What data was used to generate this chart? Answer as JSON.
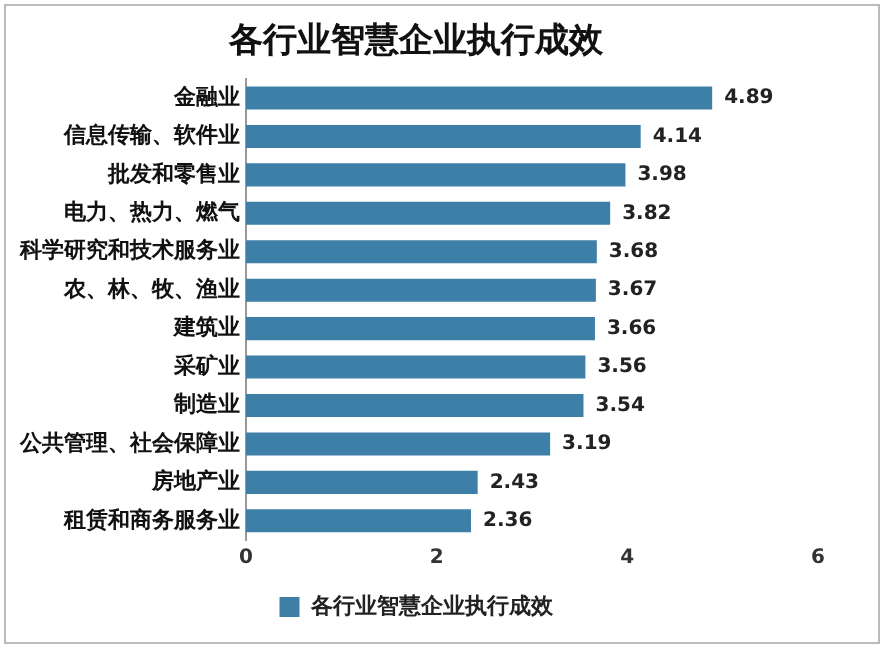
{
  "chart_data": {
    "type": "bar",
    "orientation": "horizontal",
    "title": "各行业智慧企业执行成效",
    "categories": [
      "金融业",
      "信息传输、软件业",
      "批发和零售业",
      "电力、热力、燃气",
      "科学研究和技术服务业",
      "农、林、牧、渔业",
      "建筑业",
      "采矿业",
      "制造业",
      "公共管理、社会保障业",
      "房地产业",
      "租赁和商务服务业"
    ],
    "series": [
      {
        "name": "各行业智慧企业执行成效",
        "color": "#3d7fa6",
        "values": [
          4.89,
          4.14,
          3.98,
          3.82,
          3.68,
          3.67,
          3.66,
          3.56,
          3.54,
          3.19,
          2.43,
          2.36
        ]
      }
    ],
    "xlim": [
      0,
      6
    ],
    "xticks": [
      0,
      2,
      4,
      6
    ],
    "data_labels": true,
    "legend": "bottom"
  }
}
